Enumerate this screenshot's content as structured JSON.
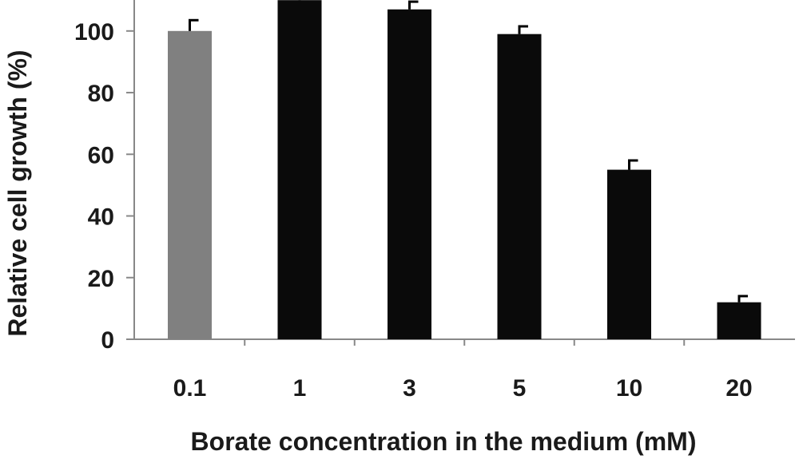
{
  "chart_data": {
    "type": "bar",
    "categories": [
      "0.1",
      "1",
      "3",
      "5",
      "10",
      "20"
    ],
    "values": [
      100,
      110,
      107,
      99,
      55,
      12
    ],
    "errors": [
      3.5,
      3,
      2.5,
      2.5,
      3,
      2
    ],
    "colors": [
      "#808080",
      "#0a0a0a",
      "#0a0a0a",
      "#0a0a0a",
      "#0a0a0a",
      "#0a0a0a"
    ],
    "xlabel": "Borate concentration in the medium (mM)",
    "ylabel": "Relative cell growth (%)",
    "ylim": [
      0,
      110
    ],
    "yticks": [
      "0",
      "20",
      "40",
      "60",
      "80",
      "100"
    ],
    "grid": false,
    "legend": "none"
  }
}
